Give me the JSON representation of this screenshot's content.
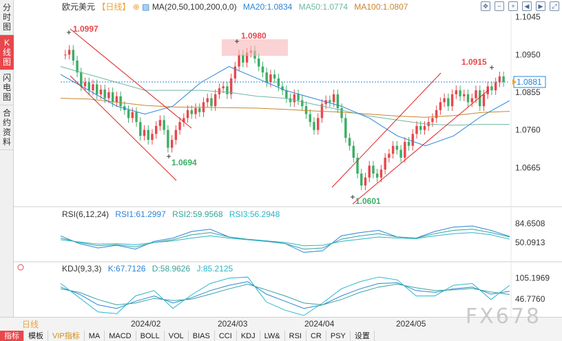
{
  "left_tabs": [
    {
      "label": "分时图",
      "active": false
    },
    {
      "label": "K线图",
      "active": true
    },
    {
      "label": "闪电图",
      "active": false
    },
    {
      "label": "合约资料",
      "active": false
    }
  ],
  "header": {
    "symbol": "欧元美元",
    "period": "【日线】",
    "ma_params": "MA(20,50,100,200,0,0)",
    "ma20": "MA20:1.0834",
    "ma50": "MA50:1.0774",
    "ma100": "MA100:1.0807"
  },
  "rsi_header": {
    "name": "RSI(6,12,24)",
    "rsi1": "RSI1:61.2997",
    "rsi2": "RSI2:59.9568",
    "rsi3": "RSI3:56.2948"
  },
  "kdj_header": {
    "name": "KDJ(9,3,3)",
    "k": "K:67.7126",
    "d": "D:58.9626",
    "j": "J:85.2125"
  },
  "price_axis": {
    "ticks": [
      "1.1045",
      "1.0950",
      "1.0855",
      "1.0760",
      "1.0665"
    ],
    "current_price": "1.0881"
  },
  "rsi_axis": {
    "ticks": [
      "84.6508",
      "50.0913"
    ]
  },
  "kdj_axis": {
    "ticks": [
      "105.1969",
      "46.7760"
    ]
  },
  "annotations": {
    "high1": "1.0997",
    "low1": "1.0694",
    "high2": "1.0980",
    "low2": "1.0601",
    "high3": "1.0915"
  },
  "date_axis": [
    "2024/02",
    "2024/03",
    "2024/04",
    "2024/05"
  ],
  "period_tag": "日线",
  "indicator_tabs": [
    {
      "label": "指标",
      "active": true,
      "vip": false
    },
    {
      "label": "模板",
      "active": false,
      "vip": false
    },
    {
      "label": "VIP指标",
      "active": false,
      "vip": true
    },
    {
      "label": "MA",
      "active": false,
      "vip": false
    },
    {
      "label": "MACD",
      "active": false,
      "vip": false
    },
    {
      "label": "BOLL",
      "active": false,
      "vip": false
    },
    {
      "label": "VOL",
      "active": false,
      "vip": false
    },
    {
      "label": "BIAS",
      "active": false,
      "vip": false
    },
    {
      "label": "CCI",
      "active": false,
      "vip": false
    },
    {
      "label": "KDJ",
      "active": false,
      "vip": false
    },
    {
      "label": "LW&",
      "active": false,
      "vip": false
    },
    {
      "label": "RSI",
      "active": false,
      "vip": false
    },
    {
      "label": "CR",
      "active": false,
      "vip": false
    },
    {
      "label": "PSY",
      "active": false,
      "vip": false
    },
    {
      "label": "设置",
      "active": false,
      "vip": false
    }
  ],
  "watermark": "FX678",
  "colors": {
    "up": "#e8474c",
    "down": "#3cae64",
    "ma20": "#2a84d6",
    "ma50": "#6fb7a0",
    "ma100": "#c9852c",
    "trendline": "#e02020",
    "price_tag": "#2a84d6"
  },
  "chart_data": {
    "type": "candlestick",
    "symbol": "EURUSD",
    "period": "daily",
    "ylim": [
      1.057,
      1.106
    ],
    "start_close": 1.095,
    "closes": [
      1.095,
      1.0962,
      1.0935,
      1.0905,
      1.087,
      1.088,
      1.086,
      1.0875,
      1.085,
      1.0862,
      1.084,
      1.0855,
      1.083,
      1.0845,
      1.082,
      1.081,
      1.079,
      1.0805,
      1.078,
      1.0745,
      1.076,
      1.0735,
      1.075,
      1.077,
      1.0785,
      1.076,
      1.0715,
      1.0735,
      1.076,
      1.078,
      1.079,
      1.081,
      1.08,
      1.0815,
      1.0805,
      1.083,
      1.084,
      1.082,
      1.085,
      1.0865,
      1.087,
      1.085,
      1.089,
      1.092,
      1.095,
      1.093,
      1.0955,
      1.096,
      1.094,
      1.092,
      1.0905,
      1.088,
      1.09,
      1.089,
      1.087,
      1.086,
      1.084,
      1.083,
      1.085,
      1.0835,
      1.082,
      1.08,
      1.078,
      1.076,
      1.079,
      1.0825,
      1.0835,
      1.083,
      1.085,
      1.0815,
      1.079,
      1.074,
      1.072,
      1.069,
      1.065,
      1.062,
      1.064,
      1.067,
      1.065,
      1.064,
      1.066,
      1.069,
      1.07,
      1.072,
      1.071,
      1.069,
      1.073,
      1.072,
      1.075,
      1.077,
      1.076,
      1.077,
      1.078,
      1.079,
      1.081,
      1.083,
      1.084,
      1.082,
      1.085,
      1.086,
      1.0845,
      1.085,
      1.083,
      1.084,
      1.086,
      1.082,
      1.085,
      1.087,
      1.086,
      1.088,
      1.0895,
      1.0881
    ],
    "ma20": [
      1.09,
      1.086,
      1.082,
      1.08,
      1.082,
      1.088,
      1.092,
      1.089,
      1.086,
      1.084,
      1.082,
      1.079,
      1.0745,
      1.072,
      1.0745,
      1.0795,
      1.0834
    ],
    "ma50": [
      1.092,
      1.09,
      1.088,
      1.086,
      1.086,
      1.086,
      1.0855,
      1.0845,
      1.084,
      1.0825,
      1.081,
      1.0795,
      1.0785,
      1.0775,
      1.0772,
      1.0774,
      1.0774
    ],
    "ma100": [
      1.084,
      1.0838,
      1.083,
      1.0822,
      1.0818,
      1.0817,
      1.0816,
      1.0815,
      1.0812,
      1.0808,
      1.0805,
      1.08,
      1.0795,
      1.0792,
      1.0796,
      1.0804,
      1.0807
    ],
    "rsi_range": [
      20,
      95
    ],
    "rsi_series": [
      {
        "name": "RSI1",
        "values": [
          62,
          48,
          40,
          45,
          38,
          52,
          58,
          70,
          74,
          60,
          55,
          52,
          48,
          32,
          35,
          62,
          68,
          72,
          60,
          58,
          70,
          78,
          80,
          72,
          61
        ]
      },
      {
        "name": "RSI2",
        "values": [
          58,
          50,
          44,
          46,
          42,
          50,
          55,
          64,
          68,
          60,
          56,
          53,
          48,
          38,
          40,
          56,
          62,
          66,
          60,
          58,
          66,
          72,
          74,
          68,
          60
        ]
      },
      {
        "name": "RSI3",
        "values": [
          55,
          51,
          47,
          48,
          46,
          50,
          53,
          58,
          62,
          58,
          55,
          53,
          50,
          44,
          45,
          52,
          56,
          60,
          58,
          57,
          62,
          66,
          68,
          64,
          56
        ]
      }
    ],
    "kdj_range": [
      0,
      120
    ],
    "kdj_series": [
      {
        "name": "K",
        "values": [
          80,
          60,
          30,
          20,
          40,
          55,
          35,
          50,
          70,
          85,
          95,
          60,
          40,
          20,
          30,
          55,
          75,
          90,
          92,
          70,
          65,
          75,
          80,
          60,
          68
        ]
      },
      {
        "name": "D",
        "values": [
          75,
          65,
          45,
          30,
          35,
          48,
          42,
          46,
          60,
          75,
          88,
          72,
          55,
          35,
          30,
          45,
          65,
          80,
          88,
          78,
          70,
          72,
          76,
          66,
          59
        ]
      },
      {
        "name": "J",
        "values": [
          90,
          50,
          10,
          5,
          55,
          70,
          20,
          58,
          90,
          105,
          108,
          38,
          15,
          0,
          35,
          75,
          95,
          108,
          100,
          55,
          55,
          85,
          90,
          45,
          85
        ]
      }
    ]
  }
}
